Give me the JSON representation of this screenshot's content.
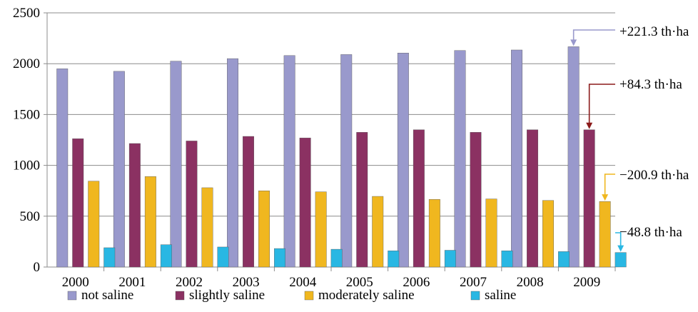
{
  "chart_data": {
    "type": "bar",
    "title": "",
    "xlabel": "",
    "ylabel": "",
    "ylim": [
      0,
      2500
    ],
    "yticks": [
      0,
      500,
      1000,
      1500,
      2000,
      2500
    ],
    "grid": true,
    "legend_position": "bottom",
    "categories": [
      "2000",
      "2001",
      "2002",
      "2003",
      "2004",
      "2005",
      "2006",
      "2007",
      "2008",
      "2009"
    ],
    "series": [
      {
        "name": "not saline",
        "color": "#9999cc",
        "values": [
          1950,
          1925,
          2025,
          2050,
          2080,
          2090,
          2105,
          2130,
          2135,
          2167
        ]
      },
      {
        "name": "slightly saline",
        "color": "#8b3162",
        "values": [
          1262,
          1215,
          1240,
          1285,
          1270,
          1325,
          1350,
          1325,
          1350,
          1350
        ]
      },
      {
        "name": "moderately saline",
        "color": "#f0b71f",
        "values": [
          845,
          890,
          780,
          750,
          740,
          695,
          665,
          670,
          655,
          645
        ]
      },
      {
        "name": "saline",
        "color": "#29b7e3",
        "values": [
          190,
          220,
          197,
          182,
          175,
          160,
          165,
          160,
          152,
          143
        ]
      }
    ],
    "annotations": [
      {
        "text": "+221.3 th·ha",
        "series": 0,
        "category": "2009",
        "color": "#9999cc"
      },
      {
        "text": "+84.3 th·ha",
        "series": 1,
        "category": "2009",
        "color": "#8b1a1a"
      },
      {
        "text": "−200.9 th·ha",
        "series": 2,
        "category": "2009",
        "color": "#f0b71f"
      },
      {
        "text": "−48.8 th·ha",
        "series": 3,
        "category": "2009",
        "color": "#29b7e3"
      }
    ]
  }
}
